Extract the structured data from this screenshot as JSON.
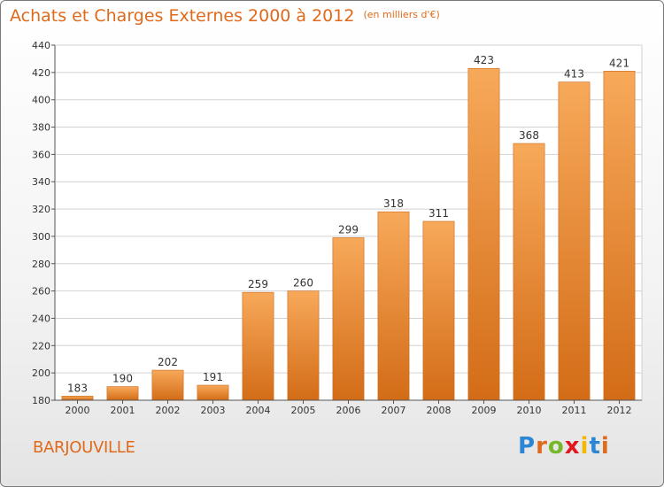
{
  "title": "Achats et Charges Externes 2000 à 2012",
  "unit": "(en milliers d'€)",
  "commune": "BARJOUVILLE",
  "logo": {
    "letters": [
      "P",
      "r",
      "o",
      "x",
      "i",
      "t",
      "i"
    ],
    "colors": [
      "#2c86d6",
      "#e06a1b",
      "#76b82a",
      "#e3181f",
      "#f2b800",
      "#2c86d6",
      "#e06a1b"
    ]
  },
  "colors": {
    "accent": "#e06a1b",
    "bar_top": "#f7a95a",
    "bar_bottom": "#d36c17"
  },
  "chart_data": {
    "type": "bar",
    "categories": [
      "2000",
      "2001",
      "2002",
      "2003",
      "2004",
      "2005",
      "2006",
      "2007",
      "2008",
      "2009",
      "2010",
      "2011",
      "2012"
    ],
    "values": [
      183,
      190,
      202,
      191,
      259,
      260,
      299,
      318,
      311,
      423,
      368,
      413,
      421
    ],
    "ylim": [
      180,
      440
    ],
    "yticks": [
      180,
      200,
      220,
      240,
      260,
      280,
      300,
      320,
      340,
      360,
      380,
      400,
      420,
      440
    ],
    "grid": true,
    "title": "Achats et Charges Externes 2000 à 2012",
    "xlabel": "",
    "ylabel": ""
  }
}
